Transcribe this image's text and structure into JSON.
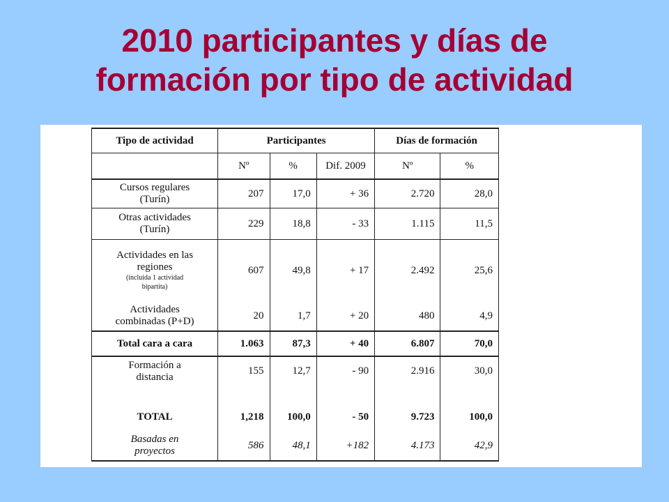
{
  "title": {
    "line1": "2010 participantes y días de",
    "line2": "formación por tipo de actividad"
  },
  "table": {
    "headers": {
      "tipo": "Tipo de actividad",
      "participantes": "Participantes",
      "dias": "Días de formación"
    },
    "subheaders": {
      "num": "Nº",
      "pct": "%",
      "dif": "Dif. 2009",
      "dias_num": "Nº",
      "dias_pct": "%"
    },
    "rows": [
      {
        "label": "Cursos regulares",
        "label2": "(Turín)",
        "n": "207",
        "pct": "17,0",
        "dif": "+ 36",
        "dn": "2.720",
        "dp": "28,0"
      },
      {
        "label": "Otras actividades",
        "label2": "(Turín)",
        "n": "229",
        "pct": "18,8",
        "dif": "- 33",
        "dn": "1.115",
        "dp": "11,5"
      },
      {
        "label": "Actividades en las",
        "label2": "regiones",
        "note1": "(incluida 1 actividad",
        "note2": "bipartita)",
        "n": "607",
        "pct": "49,8",
        "dif": "+ 17",
        "dn": "2.492",
        "dp": "25,6"
      },
      {
        "label": "Actividades",
        "label2": "combinadas (P+D)",
        "n": "20",
        "pct": "1,7",
        "dif": "+ 20",
        "dn": "480",
        "dp": "4,9"
      },
      {
        "label": "Total cara a cara",
        "n": "1.063",
        "pct": "87,3",
        "dif": "+ 40",
        "dn": "6.807",
        "dp": "70,0"
      },
      {
        "label": "Formación a",
        "label2": "distancia",
        "n": "155",
        "pct": "12,7",
        "dif": "- 90",
        "dn": "2.916",
        "dp": "30,0"
      },
      {
        "label": "TOTAL",
        "n": "1,218",
        "pct": "100,0",
        "dif": "- 50",
        "dn": "9.723",
        "dp": "100,0"
      },
      {
        "label": "Basadas en",
        "label2": "proyectos",
        "n": "586",
        "pct": "48,1",
        "dif": "+182",
        "dn": "4.173",
        "dp": "42,9"
      }
    ]
  }
}
